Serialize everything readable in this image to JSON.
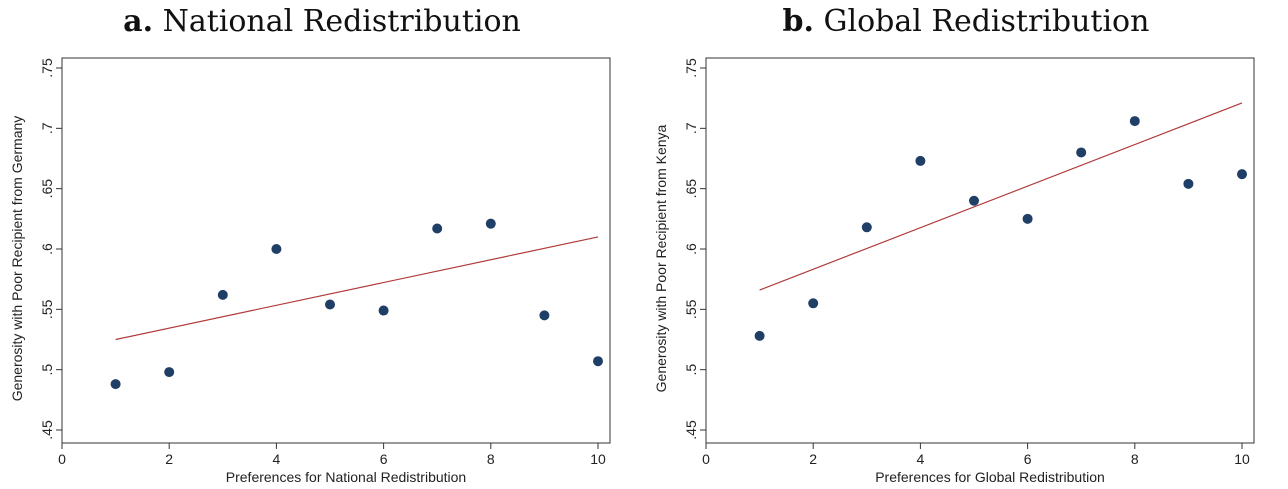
{
  "chart_data": [
    {
      "type": "scatter",
      "panel_letter": "a.",
      "title": "National Redistribution",
      "xlabel": "Preferences for National Redistribution",
      "ylabel": "Generosity with Poor Recipient from Germany",
      "xlim": [
        0,
        10
      ],
      "ylim": [
        0.45,
        0.75
      ],
      "xticks": [
        "0",
        "2",
        "4",
        "6",
        "8",
        "10"
      ],
      "yticks": [
        ".45",
        ".5",
        ".55",
        ".6",
        ".65",
        ".7",
        ".75"
      ],
      "grid": false,
      "points": [
        {
          "x": 1,
          "y": 0.488
        },
        {
          "x": 2,
          "y": 0.498
        },
        {
          "x": 3,
          "y": 0.562
        },
        {
          "x": 4,
          "y": 0.6
        },
        {
          "x": 5,
          "y": 0.554
        },
        {
          "x": 6,
          "y": 0.549
        },
        {
          "x": 7,
          "y": 0.617
        },
        {
          "x": 8,
          "y": 0.621
        },
        {
          "x": 9,
          "y": 0.545
        },
        {
          "x": 10,
          "y": 0.507
        }
      ],
      "fit_line": {
        "x": [
          1,
          10
        ],
        "y": [
          0.525,
          0.61
        ]
      },
      "point_color": "#1f3f66",
      "line_color": "#b03a3a"
    },
    {
      "type": "scatter",
      "panel_letter": "b.",
      "title": "Global Redistribution",
      "xlabel": "Preferences for Global Redistribution",
      "ylabel": "Generosity with Poor Recipient from Kenya",
      "xlim": [
        0,
        10
      ],
      "ylim": [
        0.45,
        0.75
      ],
      "xticks": [
        "0",
        "2",
        "4",
        "6",
        "8",
        "10"
      ],
      "yticks": [
        ".45",
        ".5",
        ".55",
        ".6",
        ".65",
        ".7",
        ".75"
      ],
      "grid": false,
      "points": [
        {
          "x": 1,
          "y": 0.528
        },
        {
          "x": 2,
          "y": 0.555
        },
        {
          "x": 3,
          "y": 0.618
        },
        {
          "x": 4,
          "y": 0.673
        },
        {
          "x": 5,
          "y": 0.64
        },
        {
          "x": 6,
          "y": 0.625
        },
        {
          "x": 7,
          "y": 0.68
        },
        {
          "x": 8,
          "y": 0.706
        },
        {
          "x": 9,
          "y": 0.654
        },
        {
          "x": 10,
          "y": 0.662
        }
      ],
      "fit_line": {
        "x": [
          1,
          10
        ],
        "y": [
          0.566,
          0.721
        ]
      },
      "point_color": "#1f3f66",
      "line_color": "#b03a3a"
    }
  ]
}
